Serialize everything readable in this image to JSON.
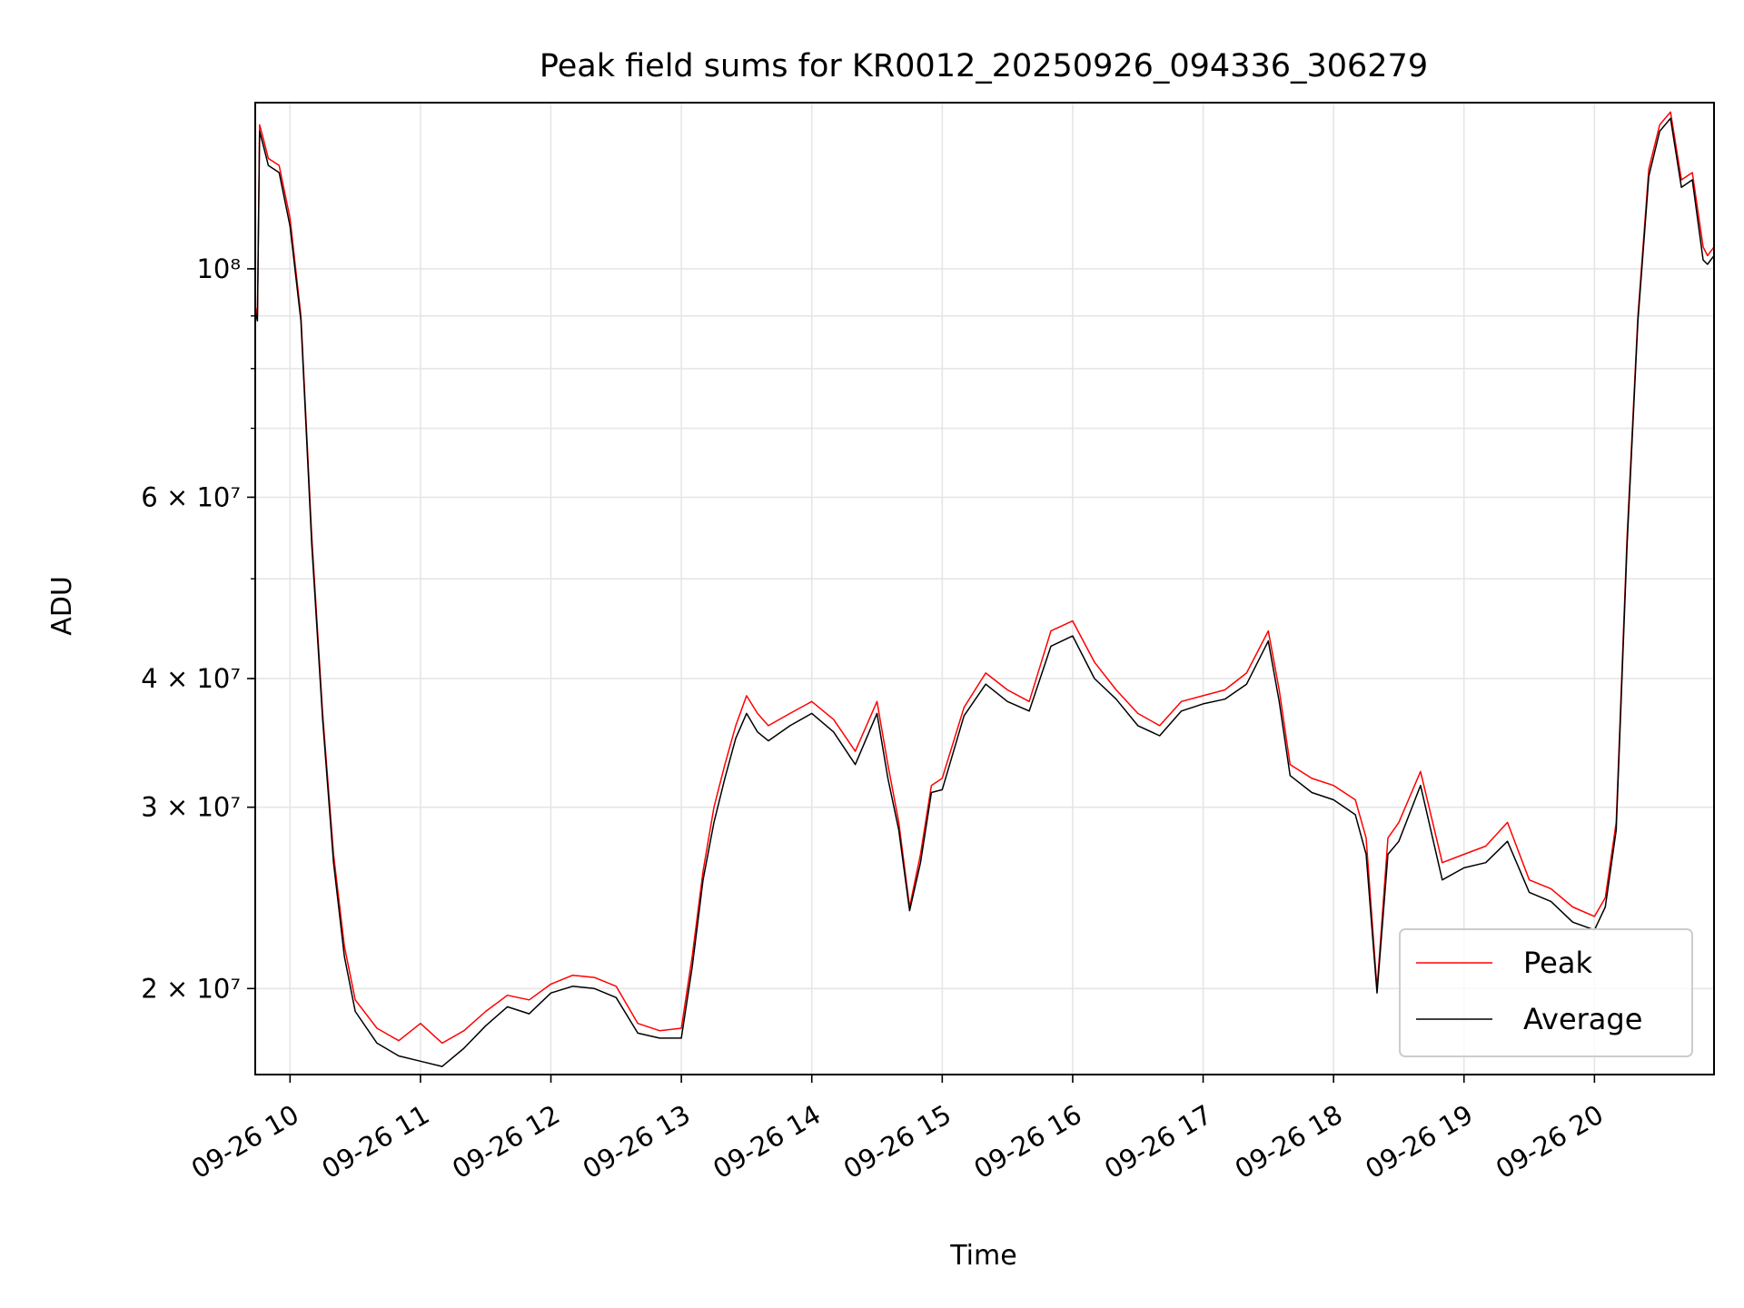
{
  "chart_data": {
    "type": "line",
    "title": "Peak field sums for KR0012_20250926_094336_306279",
    "xlabel": "Time",
    "ylabel": "ADU",
    "yscale": "log",
    "ylim": [
      16500000,
      145000000
    ],
    "xlim": [
      "09-26 09:44",
      "09-26 20:55"
    ],
    "grid": true,
    "legend_position": "lower-right",
    "x_tick_labels": [
      "09-26 10",
      "09-26 11",
      "09-26 12",
      "09-26 13",
      "09-26 14",
      "09-26 15",
      "09-26 16",
      "09-26 17",
      "09-26 18",
      "09-26 19",
      "09-26 20"
    ],
    "y_tick_labels": [
      {
        "value": 100000000,
        "label": "10⁸"
      },
      {
        "value": 60000000,
        "label": "6 × 10⁷"
      },
      {
        "value": 40000000,
        "label": "4 × 10⁷"
      },
      {
        "value": 30000000,
        "label": "3 × 10⁷"
      },
      {
        "value": 20000000,
        "label": "2 × 10⁷"
      }
    ],
    "colors": {
      "peak": "#ff0000",
      "average": "#000000"
    },
    "series": [
      {
        "name": "Peak",
        "x": [
          "09-26 09:44",
          "09-26 09:45",
          "09-26 09:46",
          "09-26 09:48",
          "09-26 09:50",
          "09-26 09:55",
          "09-26 10:00",
          "09-26 10:05",
          "09-26 10:10",
          "09-26 10:15",
          "09-26 10:20",
          "09-26 10:25",
          "09-26 10:30",
          "09-26 10:40",
          "09-26 10:50",
          "09-26 11:00",
          "09-26 11:10",
          "09-26 11:20",
          "09-26 11:30",
          "09-26 11:40",
          "09-26 11:50",
          "09-26 12:00",
          "09-26 12:10",
          "09-26 12:20",
          "09-26 12:30",
          "09-26 12:40",
          "09-26 12:50",
          "09-26 13:00",
          "09-26 13:05",
          "09-26 13:10",
          "09-26 13:15",
          "09-26 13:20",
          "09-26 13:25",
          "09-26 13:30",
          "09-26 13:35",
          "09-26 13:40",
          "09-26 13:50",
          "09-26 14:00",
          "09-26 14:10",
          "09-26 14:20",
          "09-26 14:30",
          "09-26 14:35",
          "09-26 14:40",
          "09-26 14:45",
          "09-26 14:50",
          "09-26 14:55",
          "09-26 15:00",
          "09-26 15:10",
          "09-26 15:20",
          "09-26 15:30",
          "09-26 15:40",
          "09-26 15:50",
          "09-26 16:00",
          "09-26 16:10",
          "09-26 16:20",
          "09-26 16:30",
          "09-26 16:40",
          "09-26 16:50",
          "09-26 17:00",
          "09-26 17:10",
          "09-26 17:20",
          "09-26 17:30",
          "09-26 17:35",
          "09-26 17:40",
          "09-26 17:50",
          "09-26 18:00",
          "09-26 18:10",
          "09-26 18:15",
          "09-26 18:20",
          "09-26 18:25",
          "09-26 18:30",
          "09-26 18:40",
          "09-26 18:50",
          "09-26 19:00",
          "09-26 19:10",
          "09-26 19:20",
          "09-26 19:30",
          "09-26 19:40",
          "09-26 19:50",
          "09-26 20:00",
          "09-26 20:05",
          "09-26 20:10",
          "09-26 20:15",
          "09-26 20:20",
          "09-26 20:25",
          "09-26 20:30",
          "09-26 20:35",
          "09-26 20:40",
          "09-26 20:45",
          "09-26 20:50",
          "09-26 20:52",
          "09-26 20:55"
        ],
        "values": [
          92000000,
          90000000,
          138000000,
          133000000,
          128000000,
          126000000,
          112000000,
          90000000,
          55000000,
          37000000,
          27000000,
          22000000,
          19500000,
          18300000,
          17800000,
          18500000,
          17700000,
          18200000,
          19000000,
          19700000,
          19500000,
          20200000,
          20600000,
          20500000,
          20100000,
          18500000,
          18200000,
          18300000,
          21500000,
          26000000,
          30000000,
          33000000,
          36000000,
          38500000,
          37000000,
          36000000,
          37000000,
          38000000,
          36500000,
          34000000,
          38000000,
          33000000,
          29000000,
          24000000,
          27000000,
          31500000,
          32000000,
          37500000,
          40500000,
          39000000,
          38000000,
          44500000,
          45500000,
          41500000,
          39000000,
          37000000,
          36000000,
          38000000,
          38500000,
          39000000,
          40500000,
          44500000,
          39000000,
          33000000,
          32000000,
          31500000,
          30500000,
          28000000,
          20000000,
          28000000,
          29000000,
          32500000,
          26500000,
          27000000,
          27500000,
          29000000,
          25500000,
          25000000,
          24000000,
          23500000,
          24500000,
          29000000,
          55000000,
          90000000,
          125000000,
          138000000,
          142000000,
          122000000,
          124000000,
          105000000,
          103000000,
          105000000
        ]
      },
      {
        "name": "Average",
        "x": [
          "09-26 09:44",
          "09-26 09:45",
          "09-26 09:46",
          "09-26 09:48",
          "09-26 09:50",
          "09-26 09:55",
          "09-26 10:00",
          "09-26 10:05",
          "09-26 10:10",
          "09-26 10:15",
          "09-26 10:20",
          "09-26 10:25",
          "09-26 10:30",
          "09-26 10:40",
          "09-26 10:50",
          "09-26 11:00",
          "09-26 11:10",
          "09-26 11:20",
          "09-26 11:30",
          "09-26 11:40",
          "09-26 11:50",
          "09-26 12:00",
          "09-26 12:10",
          "09-26 12:20",
          "09-26 12:30",
          "09-26 12:40",
          "09-26 12:50",
          "09-26 13:00",
          "09-26 13:05",
          "09-26 13:10",
          "09-26 13:15",
          "09-26 13:20",
          "09-26 13:25",
          "09-26 13:30",
          "09-26 13:35",
          "09-26 13:40",
          "09-26 13:50",
          "09-26 14:00",
          "09-26 14:10",
          "09-26 14:20",
          "09-26 14:30",
          "09-26 14:35",
          "09-26 14:40",
          "09-26 14:45",
          "09-26 14:50",
          "09-26 14:55",
          "09-26 15:00",
          "09-26 15:10",
          "09-26 15:20",
          "09-26 15:30",
          "09-26 15:40",
          "09-26 15:50",
          "09-26 16:00",
          "09-26 16:10",
          "09-26 16:20",
          "09-26 16:30",
          "09-26 16:40",
          "09-26 16:50",
          "09-26 17:00",
          "09-26 17:10",
          "09-26 17:20",
          "09-26 17:30",
          "09-26 17:35",
          "09-26 17:40",
          "09-26 17:50",
          "09-26 18:00",
          "09-26 18:10",
          "09-26 18:15",
          "09-26 18:20",
          "09-26 18:25",
          "09-26 18:30",
          "09-26 18:40",
          "09-26 18:50",
          "09-26 19:00",
          "09-26 19:10",
          "09-26 19:20",
          "09-26 19:30",
          "09-26 19:40",
          "09-26 19:50",
          "09-26 20:00",
          "09-26 20:05",
          "09-26 20:10",
          "09-26 20:15",
          "09-26 20:20",
          "09-26 20:25",
          "09-26 20:30",
          "09-26 20:35",
          "09-26 20:40",
          "09-26 20:45",
          "09-26 20:50",
          "09-26 20:52",
          "09-26 20:55"
        ],
        "values": [
          91000000,
          89000000,
          136000000,
          131000000,
          126000000,
          124000000,
          110000000,
          89000000,
          54000000,
          36500000,
          26500000,
          21500000,
          19000000,
          17700000,
          17200000,
          17000000,
          16800000,
          17500000,
          18400000,
          19200000,
          18900000,
          19800000,
          20100000,
          20000000,
          19600000,
          18100000,
          17900000,
          17900000,
          21000000,
          25500000,
          29000000,
          32000000,
          35000000,
          37000000,
          35500000,
          34800000,
          36000000,
          37000000,
          35500000,
          33000000,
          37000000,
          32000000,
          28500000,
          23800000,
          26500000,
          31000000,
          31200000,
          36800000,
          39500000,
          38000000,
          37200000,
          43000000,
          44000000,
          40000000,
          38200000,
          36000000,
          35200000,
          37200000,
          37800000,
          38200000,
          39500000,
          43500000,
          38000000,
          32200000,
          31000000,
          30500000,
          29500000,
          27000000,
          19800000,
          27000000,
          27800000,
          31500000,
          25500000,
          26200000,
          26500000,
          27800000,
          24800000,
          24300000,
          23200000,
          22800000,
          24000000,
          28500000,
          54000000,
          89000000,
          123000000,
          136000000,
          140000000,
          120000000,
          122000000,
          102000000,
          101000000,
          103000000
        ]
      }
    ]
  }
}
